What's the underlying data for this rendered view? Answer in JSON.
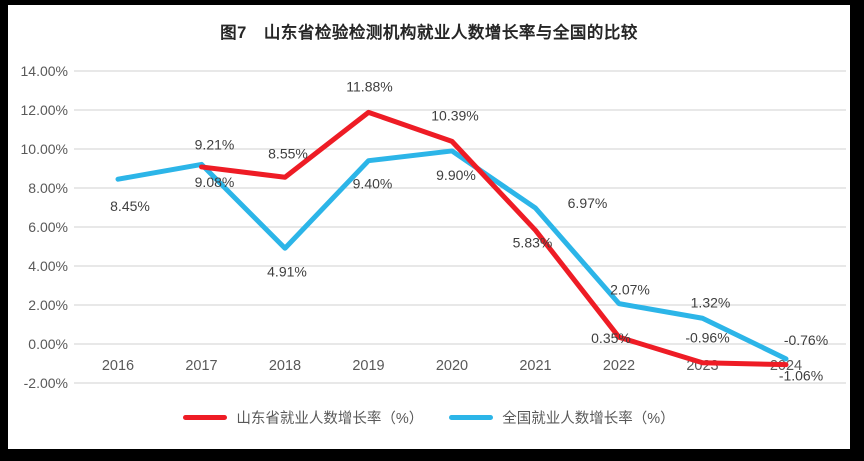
{
  "colors": {
    "frame": "#000000",
    "canvas": "#ffffff",
    "gridline": "#d9d9d9",
    "axis_text": "#595959",
    "data_label_text": "#3f3f3f",
    "title_text": "#262626",
    "shandong_red": "#ee1c25",
    "national_blue": "#2cb5e8"
  },
  "chart_data": {
    "type": "line",
    "title": "图7　山东省检验检测机构就业人数增长率与全国的比较",
    "xlabel": "",
    "ylabel": "",
    "categories": [
      "2016",
      "2017",
      "2018",
      "2019",
      "2020",
      "2021",
      "2022",
      "2023",
      "2024"
    ],
    "series": [
      {
        "name": "山东省就业人数增长率（%）",
        "color": "#ee1c25",
        "values": [
          null,
          9.08,
          8.55,
          11.88,
          10.39,
          5.83,
          0.35,
          -0.96,
          -1.06
        ],
        "data_labels": [
          null,
          "9.08%",
          "8.55%",
          "11.88%",
          "10.39%",
          "5.83%",
          "0.35%",
          "-0.96%",
          "-1.06%"
        ],
        "label_offsets": [
          null,
          [
            13,
            15
          ],
          [
            3,
            -24
          ],
          [
            1,
            -26
          ],
          [
            3,
            -26
          ],
          [
            -3,
            12
          ],
          [
            -8,
            1
          ],
          [
            5,
            -25
          ],
          [
            15,
            11
          ]
        ]
      },
      {
        "name": "全国就业人数增长率（%）",
        "color": "#2cb5e8",
        "values": [
          8.45,
          9.21,
          4.91,
          9.4,
          9.9,
          6.97,
          2.07,
          1.32,
          -0.76
        ],
        "data_labels": [
          "8.45%",
          "9.21%",
          "4.91%",
          "9.40%",
          "9.90%",
          "6.97%",
          "2.07%",
          "1.32%",
          "-0.76%"
        ],
        "label_offsets": [
          [
            12,
            27
          ],
          [
            13,
            -20
          ],
          [
            2,
            23
          ],
          [
            4,
            23
          ],
          [
            4,
            24
          ],
          [
            52,
            -5
          ],
          [
            11,
            -14
          ],
          [
            8,
            -16
          ],
          [
            20,
            -19
          ]
        ]
      }
    ],
    "ylim": [
      -2,
      14
    ],
    "ytick_step": 2,
    "ytick_labels": [
      "14.00%",
      "12.00%",
      "10.00%",
      "8.00%",
      "6.00%",
      "4.00%",
      "2.00%",
      "0.00%",
      "-2.00%"
    ],
    "grid": true,
    "legend_position": "bottom"
  }
}
